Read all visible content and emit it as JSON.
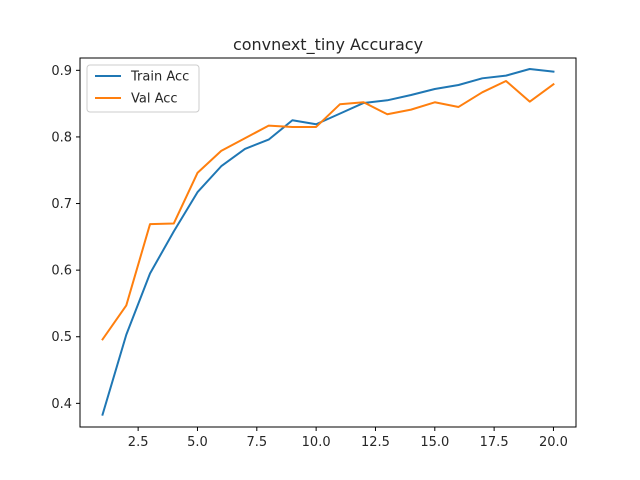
{
  "chart_data": {
    "type": "line",
    "title": "convnext_tiny Accuracy",
    "xlabel": "",
    "ylabel": "",
    "xlim": [
      0.05,
      20.95
    ],
    "ylim": [
      0.3645,
      0.9185
    ],
    "x_ticks": [
      2.5,
      5.0,
      7.5,
      10.0,
      12.5,
      15.0,
      17.5,
      20.0
    ],
    "x_tick_labels": [
      "2.5",
      "5.0",
      "7.5",
      "10.0",
      "12.5",
      "15.0",
      "17.5",
      "20.0"
    ],
    "y_ticks": [
      0.4,
      0.5,
      0.6,
      0.7,
      0.8,
      0.9
    ],
    "y_tick_labels": [
      "0.4",
      "0.5",
      "0.6",
      "0.7",
      "0.8",
      "0.9"
    ],
    "grid": false,
    "legend_position": "upper-left",
    "x": [
      1,
      2,
      3,
      4,
      5,
      6,
      7,
      8,
      9,
      10,
      11,
      12,
      13,
      14,
      15,
      16,
      17,
      18,
      19,
      20
    ],
    "series": [
      {
        "name": "Train Acc",
        "color": "#1f77b4",
        "values": [
          0.383,
          0.503,
          0.595,
          0.658,
          0.717,
          0.756,
          0.782,
          0.796,
          0.825,
          0.819,
          0.835,
          0.851,
          0.855,
          0.863,
          0.872,
          0.878,
          0.888,
          0.892,
          0.902,
          0.898
        ]
      },
      {
        "name": "Val Acc",
        "color": "#ff7f0e",
        "values": [
          0.496,
          0.547,
          0.669,
          0.67,
          0.746,
          0.779,
          0.798,
          0.817,
          0.815,
          0.815,
          0.849,
          0.852,
          0.834,
          0.841,
          0.852,
          0.845,
          0.867,
          0.884,
          0.853,
          0.879
        ]
      }
    ]
  }
}
